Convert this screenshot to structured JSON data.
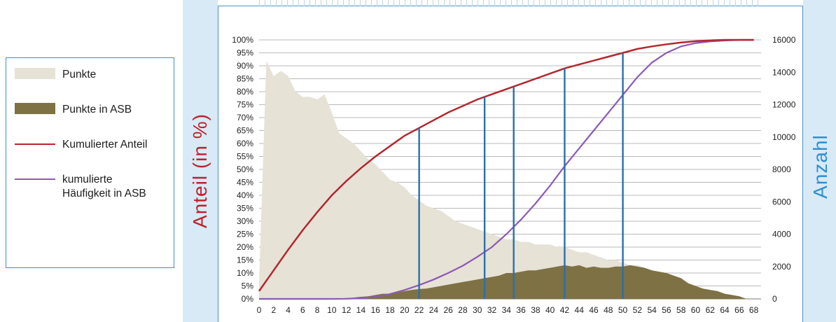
{
  "legend": {
    "items": [
      {
        "label": "Punkte",
        "color": "#e6e2d6",
        "kind": "area"
      },
      {
        "label": "Punkte in ASB",
        "color": "#7e7144",
        "kind": "area"
      },
      {
        "label": "Kumulierter Anteil",
        "color": "#b3272e",
        "kind": "line"
      },
      {
        "label": "kumulierte\nHäufigkeit in ASB",
        "color": "#8b5ab3",
        "kind": "line"
      }
    ]
  },
  "chart_data": {
    "type": "area",
    "ylabel_left": "Anteil (in %)",
    "ylabel_right": "Anzahl",
    "xlim": [
      0,
      69
    ],
    "ylim_left": [
      0,
      100
    ],
    "ylim_right": [
      0,
      16000
    ],
    "x_ticks": [
      0,
      2,
      4,
      6,
      8,
      10,
      12,
      14,
      16,
      18,
      20,
      22,
      24,
      26,
      28,
      30,
      32,
      34,
      36,
      38,
      40,
      42,
      44,
      46,
      48,
      50,
      52,
      54,
      56,
      58,
      60,
      62,
      64,
      66,
      68
    ],
    "y_left_ticks": [
      "0%",
      "5%",
      "10%",
      "15%",
      "20%",
      "25%",
      "30%",
      "35%",
      "40%",
      "45%",
      "50%",
      "55%",
      "60%",
      "65%",
      "70%",
      "75%",
      "80%",
      "85%",
      "90%",
      "95%",
      "100%"
    ],
    "y_right_ticks": [
      "0",
      "2000",
      "4000",
      "6000",
      "8000",
      "10000",
      "12000",
      "14000",
      "16000"
    ],
    "grid": true,
    "series": [
      {
        "name": "Punkte",
        "axis": "left",
        "color": "#e6e2d6",
        "x": [
          0,
          1,
          2,
          3,
          4,
          5,
          6,
          7,
          8,
          9,
          10,
          11,
          12,
          13,
          14,
          15,
          16,
          17,
          18,
          19,
          20,
          21,
          22,
          23,
          24,
          25,
          26,
          27,
          28,
          29,
          30,
          31,
          32,
          33,
          34,
          35,
          36,
          37,
          38,
          39,
          40,
          41,
          42,
          43,
          44,
          45,
          46,
          47,
          48,
          49,
          50,
          51,
          52,
          53,
          54,
          55,
          56,
          57,
          58,
          59,
          60,
          61,
          62,
          63,
          64,
          65,
          66,
          67
        ],
        "y": [
          6,
          92,
          86,
          88,
          86,
          80,
          78,
          78,
          77,
          79,
          72,
          64,
          62,
          60,
          57,
          54,
          52,
          49,
          46,
          45,
          43,
          40,
          38,
          36,
          35,
          34,
          32,
          30,
          29,
          28,
          27,
          26,
          25,
          24,
          23,
          23,
          22,
          22,
          21,
          21,
          21,
          20,
          20,
          19,
          18,
          18,
          17,
          16,
          15,
          15,
          14,
          13,
          13,
          12,
          11,
          10,
          9,
          8,
          7,
          6,
          5,
          4,
          3,
          3,
          2,
          1,
          1,
          0
        ]
      },
      {
        "name": "Punkte in ASB",
        "axis": "left",
        "color": "#7e7144",
        "x": [
          0,
          10,
          13,
          14,
          15,
          16,
          17,
          18,
          19,
          20,
          21,
          22,
          23,
          24,
          25,
          26,
          27,
          28,
          29,
          30,
          31,
          32,
          33,
          34,
          35,
          36,
          37,
          38,
          39,
          40,
          41,
          42,
          43,
          44,
          45,
          46,
          47,
          48,
          49,
          50,
          51,
          52,
          53,
          54,
          55,
          56,
          57,
          58,
          59,
          60,
          61,
          62,
          63,
          64,
          65,
          66,
          67
        ],
        "y": [
          0,
          0,
          0.5,
          0.8,
          1,
          1.5,
          2,
          2,
          2.5,
          3,
          3.5,
          3.8,
          4,
          4.5,
          5,
          5.5,
          6,
          6.5,
          7,
          7.5,
          8,
          8.5,
          9,
          10,
          10,
          10.5,
          11,
          11,
          11.5,
          12,
          12.5,
          13,
          12.5,
          13,
          12,
          12.5,
          12,
          12,
          12.5,
          12.5,
          13,
          12.5,
          12,
          11,
          10.5,
          10,
          9,
          8,
          6,
          5,
          4,
          3.5,
          3,
          2,
          1.5,
          1,
          0
        ]
      },
      {
        "name": "Kumulierter Anteil",
        "axis": "left",
        "color": "#b3272e",
        "x": [
          0,
          2,
          4,
          6,
          8,
          10,
          12,
          14,
          16,
          18,
          20,
          22,
          24,
          26,
          28,
          30,
          32,
          34,
          36,
          38,
          40,
          42,
          44,
          46,
          48,
          50,
          52,
          54,
          56,
          58,
          60,
          62,
          64,
          66,
          68
        ],
        "y": [
          3,
          11,
          19,
          26.5,
          33.5,
          40,
          45.5,
          50.5,
          55,
          59,
          63,
          66,
          69,
          72,
          74.5,
          77,
          79,
          81,
          83,
          85,
          87,
          89,
          90.5,
          92,
          93.5,
          95,
          96.5,
          97.5,
          98.3,
          99,
          99.5,
          99.8,
          100,
          100,
          100
        ]
      },
      {
        "name": "kumulierte\nHäufigkeit in ASB",
        "axis": "right",
        "color": "#8b5ab3",
        "x": [
          0,
          10,
          12,
          14,
          16,
          18,
          20,
          22,
          24,
          26,
          28,
          30,
          32,
          34,
          36,
          38,
          40,
          42,
          44,
          46,
          48,
          50,
          52,
          54,
          56,
          58,
          60,
          62,
          64,
          66,
          68
        ],
        "y": [
          0,
          0,
          10,
          40,
          120,
          300,
          550,
          850,
          1200,
          1600,
          2050,
          2600,
          3200,
          4000,
          4900,
          5900,
          7000,
          8200,
          9300,
          10400,
          11500,
          12600,
          13700,
          14600,
          15200,
          15600,
          15800,
          15900,
          15960,
          16000,
          16000
        ]
      }
    ],
    "vertical_markers": [
      {
        "x": 22,
        "y_top": 66
      },
      {
        "x": 31,
        "y_top": 78
      },
      {
        "x": 35,
        "y_top": 82
      },
      {
        "x": 42,
        "y_top": 89
      },
      {
        "x": 50,
        "y_top": 95
      }
    ],
    "marker_color": "#2a6fab"
  }
}
